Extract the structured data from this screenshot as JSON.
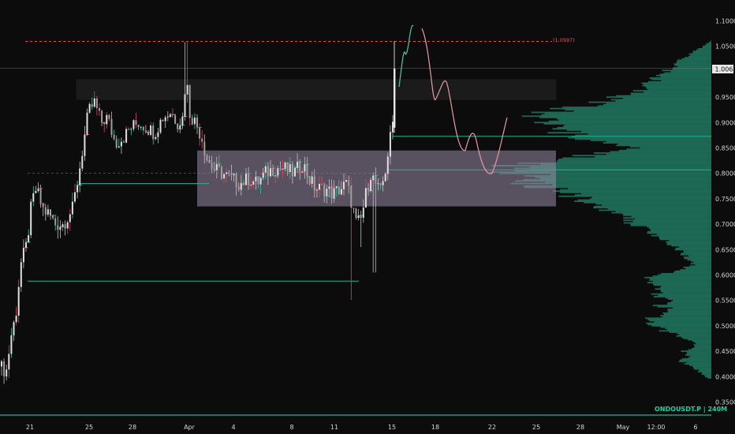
{
  "chart_data": {
    "type": "candlestick",
    "symbol_label": "ONDOUSDT.P | 240M",
    "y_axis": {
      "ticks": [
        "1.1000",
        "1.0500",
        "1.0067",
        "0.9500",
        "0.9000",
        "0.8500",
        "0.8000",
        "0.7500",
        "0.7000",
        "0.6500",
        "0.6000",
        "0.5500",
        "0.5000",
        "0.4500",
        "0.4000",
        "0.3500"
      ],
      "range": [
        0.35,
        1.1
      ]
    },
    "x_axis": {
      "ticks": [
        "21",
        "25",
        "28",
        "Apr",
        "4",
        "8",
        "11",
        "15",
        "18",
        "22",
        "25",
        "28",
        "May",
        "12:00",
        "6"
      ]
    },
    "current_price": "1.0067",
    "resistance_label": "(1.0597)",
    "resistance_level": 1.0597,
    "dashed_level": 0.8,
    "supply_zone": {
      "low": 0.945,
      "high": 0.985
    },
    "range_zone": {
      "low": 0.735,
      "high": 0.845
    },
    "horizontal_levels": [
      0.873,
      0.807,
      0.78,
      0.588
    ],
    "colors": {
      "bull": "#e0e0e0",
      "bear": "#e0e0e0",
      "wick_red": "#d9485f",
      "wick_teal": "#26c6a2",
      "profile": "#1e6e58",
      "projection_pink": "#e89aa6",
      "projection_teal": "#4fc7a8",
      "zone_fill": "#9a8aa6",
      "resistance": "#e4576a",
      "teal_line": "#1fb594"
    }
  }
}
